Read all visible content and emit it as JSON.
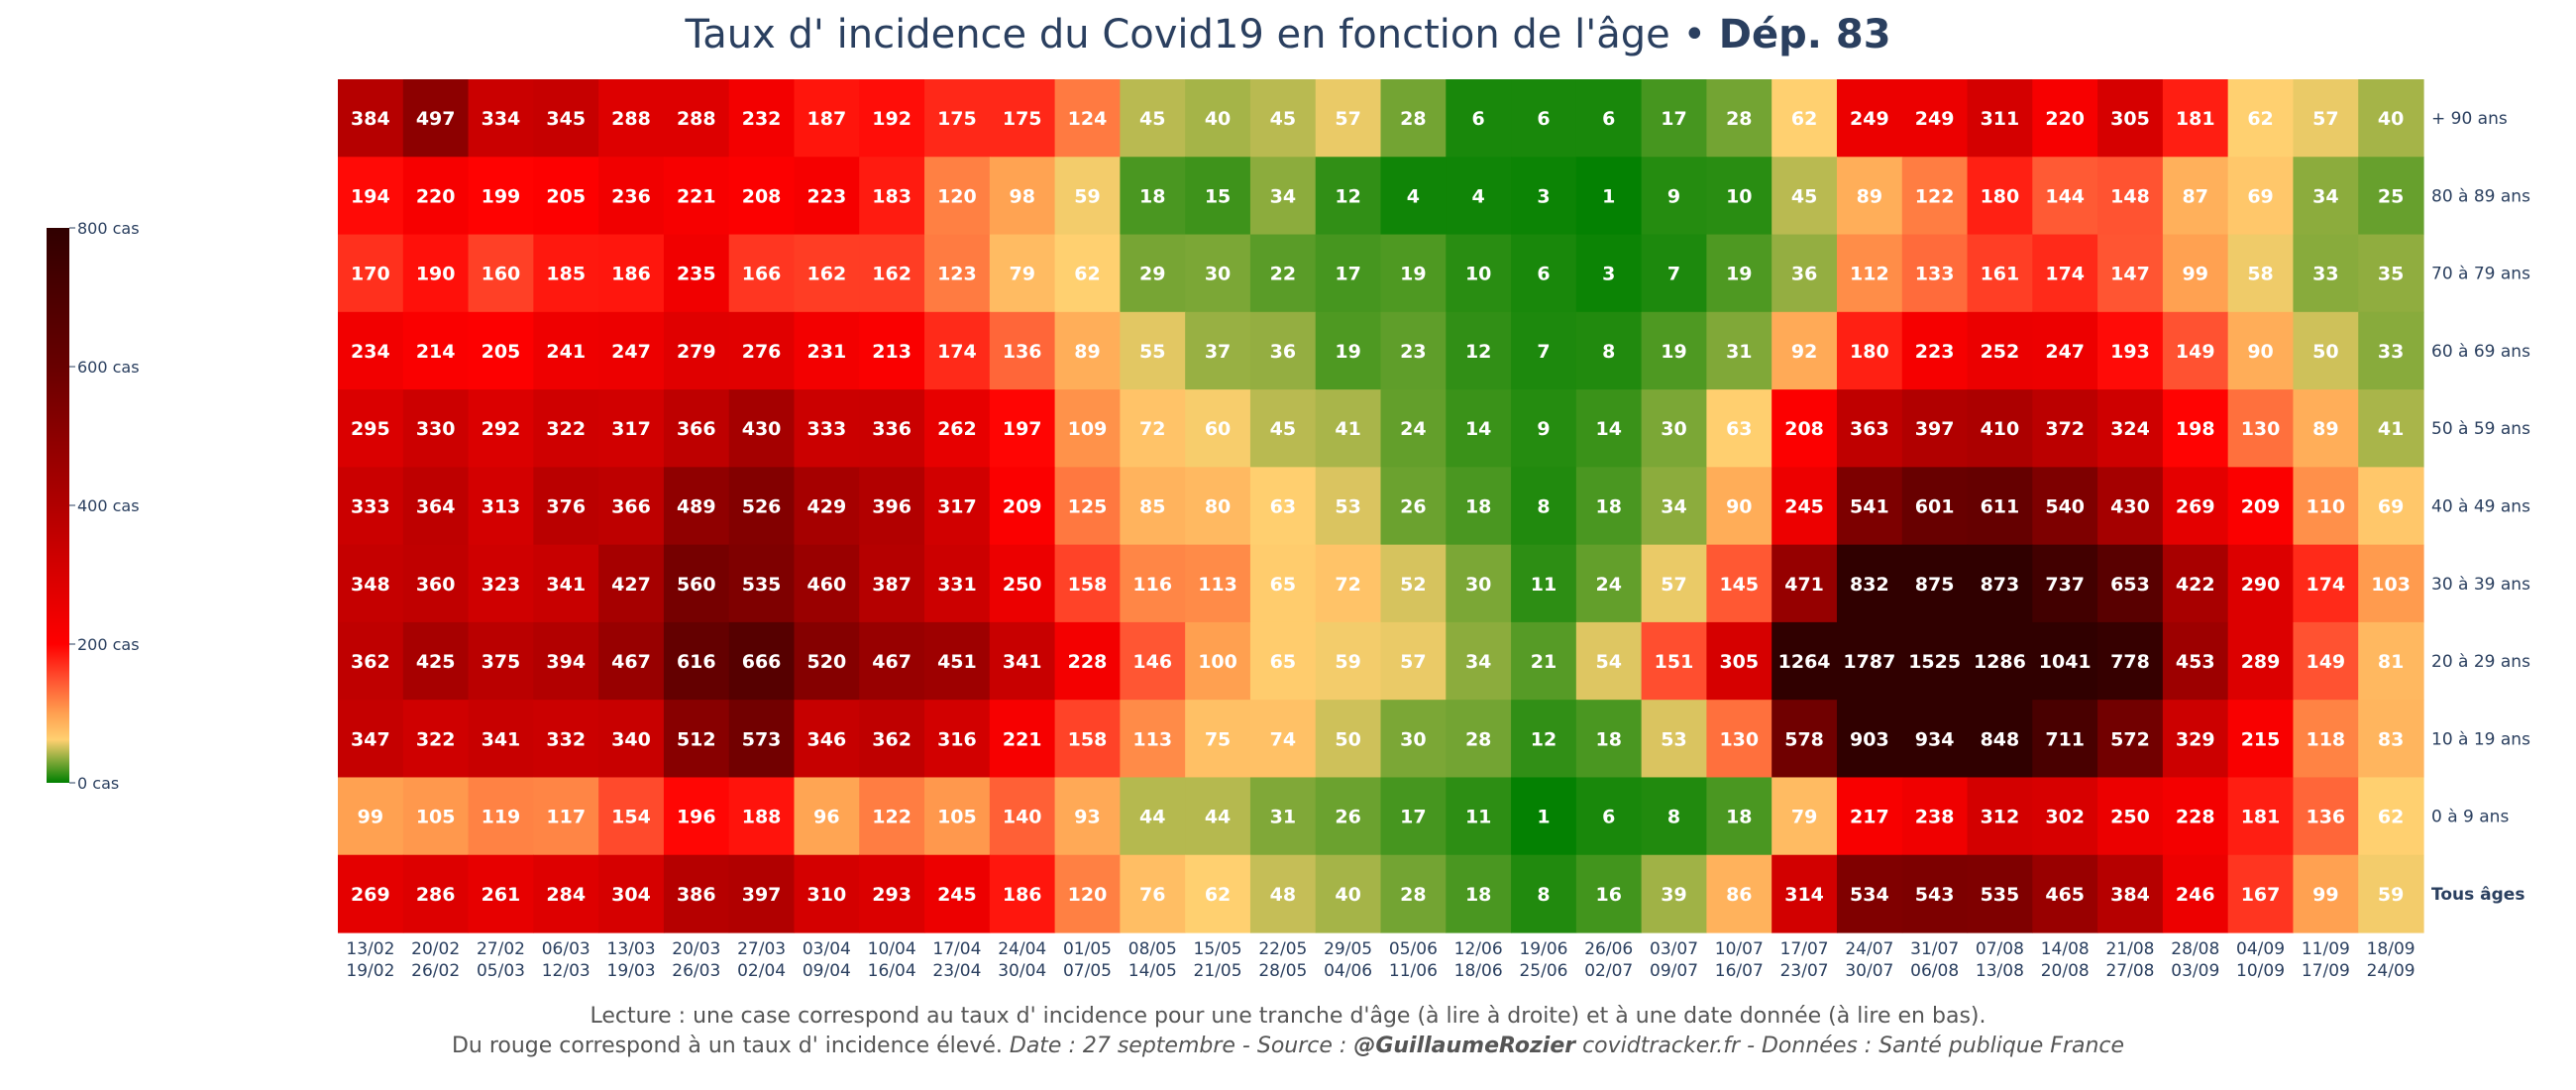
{
  "chart_data": {
    "type": "heatmap",
    "title": "Taux d' incidence du Covid19 en fonction de l'âge",
    "title_separator": "•",
    "title_bold": "Dép. 83",
    "rows": [
      "+ 90 ans",
      "80 à 89 ans",
      "70 à 79 ans",
      "60 à 69 ans",
      "50 à 59 ans",
      "40 à 49 ans",
      "30 à 39 ans",
      "20 à 29 ans",
      "10 à 19 ans",
      "0 à 9 ans",
      "Tous âges"
    ],
    "bold_rows": [
      "Tous âges"
    ],
    "columns": [
      [
        "13/02",
        "19/02"
      ],
      [
        "20/02",
        "26/02"
      ],
      [
        "27/02",
        "05/03"
      ],
      [
        "06/03",
        "12/03"
      ],
      [
        "13/03",
        "19/03"
      ],
      [
        "20/03",
        "26/03"
      ],
      [
        "27/03",
        "02/04"
      ],
      [
        "03/04",
        "09/04"
      ],
      [
        "10/04",
        "16/04"
      ],
      [
        "17/04",
        "23/04"
      ],
      [
        "24/04",
        "30/04"
      ],
      [
        "01/05",
        "07/05"
      ],
      [
        "08/05",
        "14/05"
      ],
      [
        "15/05",
        "21/05"
      ],
      [
        "22/05",
        "28/05"
      ],
      [
        "29/05",
        "04/06"
      ],
      [
        "05/06",
        "11/06"
      ],
      [
        "12/06",
        "18/06"
      ],
      [
        "19/06",
        "25/06"
      ],
      [
        "26/06",
        "02/07"
      ],
      [
        "03/07",
        "09/07"
      ],
      [
        "10/07",
        "16/07"
      ],
      [
        "17/07",
        "23/07"
      ],
      [
        "24/07",
        "30/07"
      ],
      [
        "31/07",
        "06/08"
      ],
      [
        "07/08",
        "13/08"
      ],
      [
        "14/08",
        "20/08"
      ],
      [
        "21/08",
        "27/08"
      ],
      [
        "28/08",
        "03/09"
      ],
      [
        "04/09",
        "10/09"
      ],
      [
        "11/09",
        "17/09"
      ],
      [
        "18/09",
        "24/09"
      ]
    ],
    "values": [
      [
        384,
        497,
        334,
        345,
        288,
        288,
        232,
        187,
        192,
        175,
        175,
        124,
        45,
        40,
        45,
        57,
        28,
        6,
        6,
        6,
        17,
        28,
        62,
        249,
        249,
        311,
        220,
        305,
        181,
        62,
        57,
        40
      ],
      [
        194,
        220,
        199,
        205,
        236,
        221,
        208,
        223,
        183,
        120,
        98,
        59,
        18,
        15,
        34,
        12,
        4,
        4,
        3,
        1,
        9,
        10,
        45,
        89,
        122,
        180,
        144,
        148,
        87,
        69,
        34,
        25
      ],
      [
        170,
        190,
        160,
        185,
        186,
        235,
        166,
        162,
        162,
        123,
        79,
        62,
        29,
        30,
        22,
        17,
        19,
        10,
        6,
        3,
        7,
        19,
        36,
        112,
        133,
        161,
        174,
        147,
        99,
        58,
        33,
        35
      ],
      [
        234,
        214,
        205,
        241,
        247,
        279,
        276,
        231,
        213,
        174,
        136,
        89,
        55,
        37,
        36,
        19,
        23,
        12,
        7,
        8,
        19,
        31,
        92,
        180,
        223,
        252,
        247,
        193,
        149,
        90,
        50,
        33
      ],
      [
        295,
        330,
        292,
        322,
        317,
        366,
        430,
        333,
        336,
        262,
        197,
        109,
        72,
        60,
        45,
        41,
        24,
        14,
        9,
        14,
        30,
        63,
        208,
        363,
        397,
        410,
        372,
        324,
        198,
        130,
        89,
        41
      ],
      [
        333,
        364,
        313,
        376,
        366,
        489,
        526,
        429,
        396,
        317,
        209,
        125,
        85,
        80,
        63,
        53,
        26,
        18,
        8,
        18,
        34,
        90,
        245,
        541,
        601,
        611,
        540,
        430,
        269,
        209,
        110,
        69
      ],
      [
        348,
        360,
        323,
        341,
        427,
        560,
        535,
        460,
        387,
        331,
        250,
        158,
        116,
        113,
        65,
        72,
        52,
        30,
        11,
        24,
        57,
        145,
        471,
        832,
        875,
        873,
        737,
        653,
        422,
        290,
        174,
        103
      ],
      [
        362,
        425,
        375,
        394,
        467,
        616,
        666,
        520,
        467,
        451,
        341,
        228,
        146,
        100,
        65,
        59,
        57,
        34,
        21,
        54,
        151,
        305,
        1264,
        1787,
        1525,
        1286,
        1041,
        778,
        453,
        289,
        149,
        81
      ],
      [
        347,
        322,
        341,
        332,
        340,
        512,
        573,
        346,
        362,
        316,
        221,
        158,
        113,
        75,
        74,
        50,
        30,
        28,
        12,
        18,
        53,
        130,
        578,
        903,
        934,
        848,
        711,
        572,
        329,
        215,
        118,
        83
      ],
      [
        99,
        105,
        119,
        117,
        154,
        196,
        188,
        96,
        122,
        105,
        140,
        93,
        44,
        44,
        31,
        26,
        17,
        11,
        1,
        6,
        8,
        18,
        79,
        217,
        238,
        312,
        302,
        250,
        228,
        181,
        136,
        62
      ],
      [
        269,
        286,
        261,
        284,
        304,
        386,
        397,
        310,
        293,
        245,
        186,
        120,
        76,
        62,
        48,
        40,
        28,
        18,
        8,
        16,
        39,
        86,
        314,
        534,
        543,
        535,
        465,
        384,
        246,
        167,
        99,
        59
      ]
    ],
    "colorscale": [
      [
        0,
        "#008000"
      ],
      [
        62,
        "#ffd070"
      ],
      [
        100,
        "#ffa050"
      ],
      [
        150,
        "#ff5030"
      ],
      [
        200,
        "#ff0000"
      ],
      [
        300,
        "#d80000"
      ],
      [
        400,
        "#b00000"
      ],
      [
        500,
        "#8c0000"
      ],
      [
        600,
        "#680000"
      ],
      [
        800,
        "#300000"
      ]
    ],
    "zmin": 0,
    "zmax": 800,
    "colorbar": {
      "ticks": [
        0,
        200,
        400,
        600,
        800
      ],
      "tick_labels": [
        "0 cas",
        "200 cas",
        "400 cas",
        "600 cas",
        "800 cas"
      ]
    },
    "text_color": "#ffffff",
    "label_color": "#2a3f5f"
  },
  "footer": {
    "line1": "Lecture : une case correspond au taux d' incidence pour une tranche d'âge (à lire à droite) et à une date donnée (à lire en bas).",
    "line2_a": "Du rouge correspond à un taux d' incidence élevé. ",
    "line2_b": "Date : 27 septembre - Source : ",
    "line2_c": "@GuillaumeRozier",
    "line2_d": " covidtracker.fr - Données : Santé publique France"
  }
}
